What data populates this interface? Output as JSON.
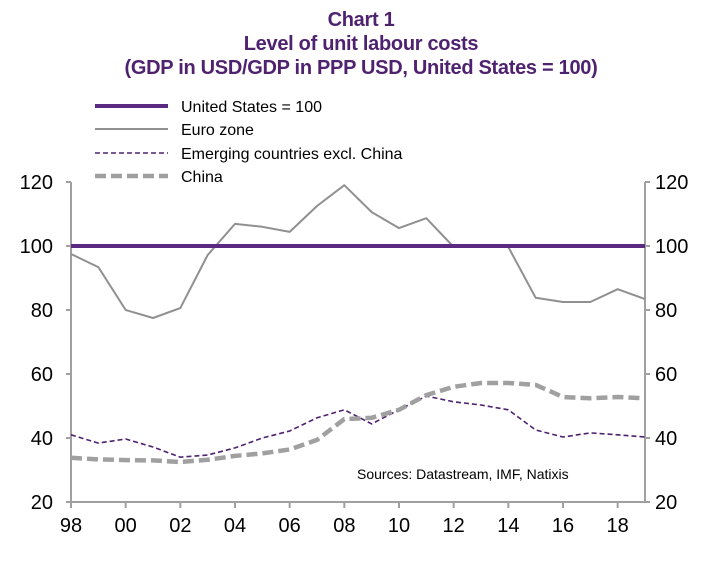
{
  "colors": {
    "title": "#4f2270",
    "us": "#5a2a82",
    "euro": "#909090",
    "emerging": "#4f2270",
    "china": "#a0a0a0",
    "axis": "#a0a0a0"
  },
  "chart_data": {
    "type": "line",
    "title": "Chart 1",
    "subtitle": "Level of unit labour costs",
    "subtitle2": "(GDP in USD/GDP in PPP USD, United States = 100)",
    "xlabel": "",
    "ylabel": "",
    "x": [
      1998,
      1999,
      2000,
      2001,
      2002,
      2003,
      2004,
      2005,
      2006,
      2007,
      2008,
      2009,
      2010,
      2011,
      2012,
      2013,
      2014,
      2015,
      2016,
      2017,
      2018,
      2019
    ],
    "x_tick_labels": [
      "98",
      "00",
      "02",
      "04",
      "06",
      "08",
      "10",
      "12",
      "14",
      "16",
      "18"
    ],
    "x_ticks": [
      1998,
      2000,
      2002,
      2004,
      2006,
      2008,
      2010,
      2012,
      2014,
      2016,
      2018
    ],
    "ylim": [
      20,
      120
    ],
    "y_ticks": [
      20,
      40,
      60,
      80,
      100,
      120
    ],
    "y_tick_labels": [
      "20",
      "40",
      "60",
      "80",
      "100",
      "120"
    ],
    "grid": false,
    "legend_position": "top-left",
    "series": [
      {
        "name": "United States = 100",
        "key": "us",
        "style": "solid-thick",
        "values": [
          100,
          100,
          100,
          100,
          100,
          100,
          100,
          100,
          100,
          100,
          100,
          100,
          100,
          100,
          100,
          100,
          100,
          100,
          100,
          100,
          100,
          100
        ]
      },
      {
        "name": "Euro zone",
        "key": "euro",
        "style": "solid-thin",
        "values": [
          97.5,
          93.4,
          80,
          77.5,
          80.6,
          97.2,
          106.9,
          106,
          104.4,
          112.5,
          119,
          110.6,
          105.6,
          108.7,
          99.7,
          100.3,
          99.7,
          83.8,
          82.5,
          82.5,
          86.5,
          83.4
        ]
      },
      {
        "name": "Emerging countries excl. China",
        "key": "emerging",
        "style": "dashed-thin",
        "values": [
          41,
          38.4,
          39.7,
          37.2,
          34,
          34.7,
          36.9,
          40,
          42.2,
          46.3,
          48.8,
          44.4,
          48.8,
          53.1,
          51.3,
          50.3,
          48.8,
          42.5,
          40.3,
          41.6,
          41,
          40.3
        ]
      },
      {
        "name": "China",
        "key": "china",
        "style": "dashed-thick",
        "values": [
          33.8,
          33.3,
          33.1,
          33,
          32.5,
          33.2,
          34.4,
          35.2,
          36.4,
          39.4,
          45.9,
          46.3,
          48.8,
          53.4,
          56,
          57.2,
          57.2,
          56.6,
          52.8,
          52.4,
          52.8,
          52.4
        ]
      }
    ],
    "annotation": "Sources:  Datastream,  IMF, Natixis"
  }
}
